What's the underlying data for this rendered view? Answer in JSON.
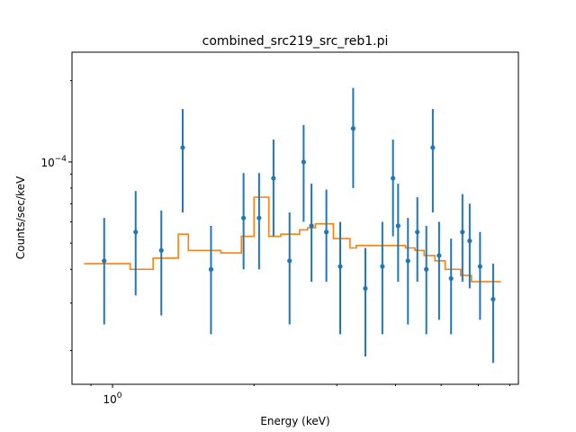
{
  "chart_data": {
    "type": "scatter",
    "title": "combined_src219_src_reb1.pi",
    "xlabel": "Energy (keV)",
    "ylabel": "Counts/sec/keV",
    "xscale": "log",
    "yscale": "log",
    "xlim": [
      0.82,
      7.3
    ],
    "ylim": [
      1.5e-05,
      0.000255
    ],
    "x_tick_labels": [
      {
        "value": 1.0,
        "label": "10^0"
      }
    ],
    "y_tick_labels": [
      {
        "value": 0.0001,
        "label": "10^-4"
      }
    ],
    "grid": false,
    "series": [
      {
        "kind": "data",
        "color": "#1f77b4",
        "points": [
          {
            "x": 0.96,
            "y": 4.3e-05,
            "ylo": 2.5e-05,
            "yhi": 6.2e-05
          },
          {
            "x": 1.12,
            "y": 5.5e-05,
            "ylo": 3.2e-05,
            "yhi": 7.8e-05
          },
          {
            "x": 1.27,
            "y": 4.7e-05,
            "ylo": 2.7e-05,
            "yhi": 6.6e-05
          },
          {
            "x": 1.41,
            "y": 0.000113,
            "ylo": 6.5e-05,
            "yhi": 0.000157
          },
          {
            "x": 1.62,
            "y": 4e-05,
            "ylo": 2.3e-05,
            "yhi": 5.8e-05
          },
          {
            "x": 1.9,
            "y": 6.2e-05,
            "ylo": 4e-05,
            "yhi": 9.1e-05
          },
          {
            "x": 2.05,
            "y": 6.2e-05,
            "ylo": 4e-05,
            "yhi": 9.1e-05
          },
          {
            "x": 2.2,
            "y": 8.7e-05,
            "ylo": 5.3e-05,
            "yhi": 0.000121
          },
          {
            "x": 2.38,
            "y": 4.3e-05,
            "ylo": 2.5e-05,
            "yhi": 6.5e-05
          },
          {
            "x": 2.55,
            "y": 0.0001,
            "ylo": 6e-05,
            "yhi": 0.000137
          },
          {
            "x": 2.65,
            "y": 5.8e-05,
            "ylo": 3.6e-05,
            "yhi": 8.3e-05
          },
          {
            "x": 2.85,
            "y": 5.5e-05,
            "ylo": 3.6e-05,
            "yhi": 7.9e-05
          },
          {
            "x": 3.05,
            "y": 4.1e-05,
            "ylo": 2.3e-05,
            "yhi": 6e-05
          },
          {
            "x": 3.25,
            "y": 0.000133,
            "ylo": 8e-05,
            "yhi": 0.000188
          },
          {
            "x": 3.45,
            "y": 3.4e-05,
            "ylo": 1.9e-05,
            "yhi": 4.8e-05
          },
          {
            "x": 3.75,
            "y": 4.1e-05,
            "ylo": 2.3e-05,
            "yhi": 6e-05
          },
          {
            "x": 3.95,
            "y": 8.7e-05,
            "ylo": 5.3e-05,
            "yhi": 0.000121
          },
          {
            "x": 4.05,
            "y": 5.8e-05,
            "ylo": 3.6e-05,
            "yhi": 8.3e-05
          },
          {
            "x": 4.25,
            "y": 4.3e-05,
            "ylo": 2.5e-05,
            "yhi": 6.2e-05
          },
          {
            "x": 4.45,
            "y": 5.5e-05,
            "ylo": 3.6e-05,
            "yhi": 7.4e-05
          },
          {
            "x": 4.65,
            "y": 4e-05,
            "ylo": 2.3e-05,
            "yhi": 5.8e-05
          },
          {
            "x": 4.8,
            "y": 0.000113,
            "ylo": 6.5e-05,
            "yhi": 0.000157
          },
          {
            "x": 4.95,
            "y": 4.5e-05,
            "ylo": 2.6e-05,
            "yhi": 6e-05
          },
          {
            "x": 5.25,
            "y": 3.7e-05,
            "ylo": 2.3e-05,
            "yhi": 5.2e-05
          },
          {
            "x": 5.55,
            "y": 5.5e-05,
            "ylo": 3.6e-05,
            "yhi": 7.6e-05
          },
          {
            "x": 5.75,
            "y": 5.1e-05,
            "ylo": 3.4e-05,
            "yhi": 7e-05
          },
          {
            "x": 6.05,
            "y": 4.1e-05,
            "ylo": 2.6e-05,
            "yhi": 5.5e-05
          },
          {
            "x": 6.45,
            "y": 3.1e-05,
            "ylo": 1.8e-05,
            "yhi": 4.2e-05
          }
        ]
      },
      {
        "kind": "model",
        "color": "#ff7f0e",
        "x": [
          0.87,
          1.09,
          1.09,
          1.22,
          1.22,
          1.38,
          1.38,
          1.45,
          1.45,
          1.7,
          1.7,
          1.88,
          1.88,
          2.0,
          2.0,
          2.15,
          2.15,
          2.28,
          2.28,
          2.5,
          2.5,
          2.6,
          2.6,
          2.7,
          2.7,
          2.95,
          2.95,
          3.2,
          3.2,
          3.3,
          3.3,
          3.7,
          3.7,
          4.2,
          4.2,
          4.4,
          4.4,
          4.6,
          4.6,
          4.85,
          4.85,
          5.1,
          5.1,
          5.5,
          5.5,
          5.8,
          5.8,
          6.2,
          6.2,
          6.7
        ],
        "y": [
          4.2e-05,
          4.2e-05,
          4e-05,
          4e-05,
          4.4e-05,
          4.4e-05,
          5.4e-05,
          5.4e-05,
          4.7e-05,
          4.7e-05,
          4.6e-05,
          4.6e-05,
          5.3e-05,
          5.3e-05,
          7.4e-05,
          7.4e-05,
          5.3e-05,
          5.3e-05,
          5.4e-05,
          5.4e-05,
          5.6e-05,
          5.6e-05,
          5.7e-05,
          5.7e-05,
          5.9e-05,
          5.9e-05,
          5.2e-05,
          5.2e-05,
          4.8e-05,
          4.8e-05,
          4.9e-05,
          4.9e-05,
          4.9e-05,
          4.9e-05,
          4.8e-05,
          4.8e-05,
          4.7e-05,
          4.7e-05,
          4.5e-05,
          4.5e-05,
          4.3e-05,
          4.3e-05,
          4e-05,
          4e-05,
          3.8e-05,
          3.8e-05,
          3.6e-05,
          3.6e-05,
          3.6e-05,
          3.6e-05
        ]
      }
    ]
  }
}
